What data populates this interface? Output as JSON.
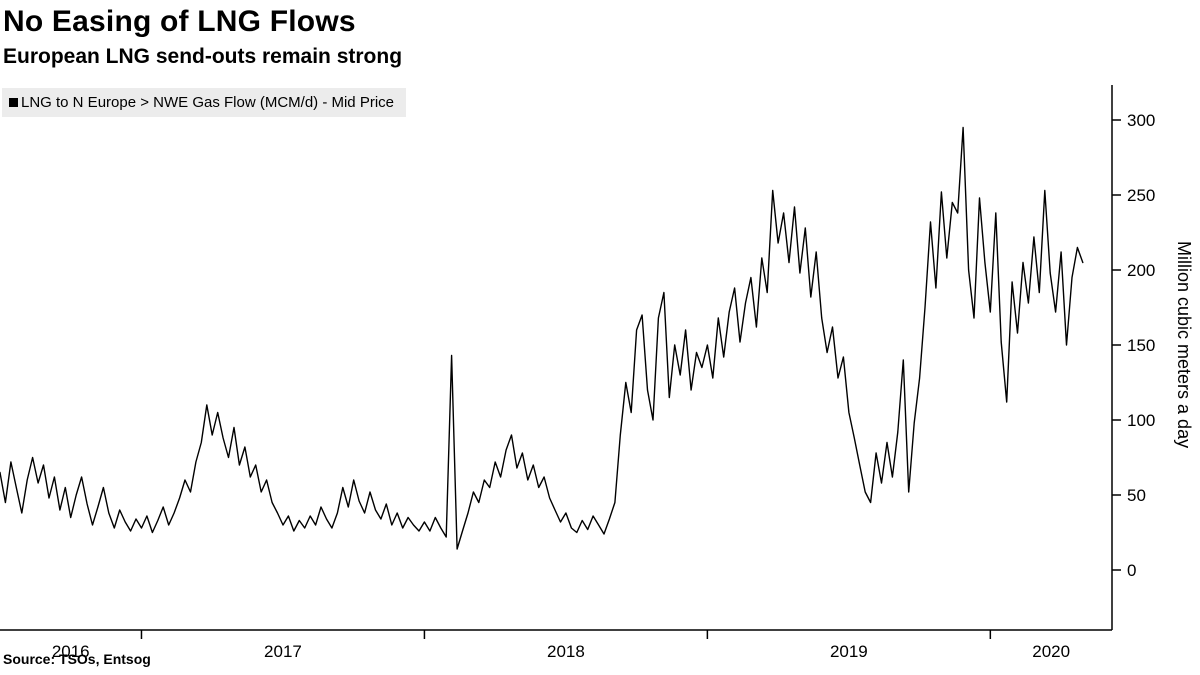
{
  "chart_data": {
    "type": "line",
    "title": "No Easing of LNG Flows",
    "subtitle": "European LNG send-outs remain strong",
    "legend_label": "LNG to N Europe > NWE Gas Flow (MCM/d) - Mid Price",
    "ylabel": "Million cubic meters a day",
    "source": "Source: TSOs, Entsog",
    "line_color": "#000000",
    "legend_bg": "#ececec",
    "x_domain": [
      2016.5,
      2020.43
    ],
    "ylim": [
      0,
      300
    ],
    "y_ticks": [
      0,
      50,
      100,
      150,
      200,
      250,
      300
    ],
    "x_ticks": [
      2017,
      2018,
      2019,
      2020
    ],
    "x_tick_labels": [
      {
        "label": "2016",
        "x": 2016.75
      },
      {
        "label": "2017",
        "x": 2017.5
      },
      {
        "label": "2018",
        "x": 2018.5
      },
      {
        "label": "2019",
        "x": 2019.5
      },
      {
        "label": "2020",
        "x": 2020.215
      }
    ],
    "series": [
      {
        "name": "LNG to N Europe > NWE Gas Flow (MCM/d) - Mid Price",
        "units": "MCM/d",
        "x_start": 2016.5,
        "x_step": 0.019231,
        "values": [
          65,
          45,
          72,
          55,
          38,
          60,
          75,
          58,
          70,
          48,
          62,
          40,
          55,
          35,
          50,
          62,
          44,
          30,
          42,
          55,
          38,
          28,
          40,
          32,
          26,
          34,
          28,
          36,
          25,
          33,
          42,
          30,
          38,
          48,
          60,
          52,
          72,
          85,
          110,
          90,
          105,
          88,
          75,
          95,
          70,
          82,
          62,
          70,
          52,
          60,
          45,
          38,
          30,
          36,
          26,
          33,
          28,
          36,
          30,
          42,
          34,
          28,
          38,
          55,
          42,
          60,
          46,
          38,
          52,
          40,
          34,
          44,
          30,
          38,
          28,
          35,
          30,
          26,
          32,
          26,
          35,
          28,
          22,
          143,
          14,
          26,
          38,
          52,
          45,
          60,
          55,
          72,
          62,
          80,
          90,
          68,
          78,
          60,
          70,
          55,
          62,
          48,
          40,
          32,
          38,
          28,
          25,
          33,
          27,
          36,
          30,
          24,
          34,
          45,
          90,
          125,
          105,
          160,
          170,
          120,
          100,
          168,
          185,
          115,
          150,
          130,
          160,
          120,
          145,
          135,
          150,
          128,
          168,
          142,
          172,
          188,
          152,
          178,
          195,
          162,
          208,
          185,
          253,
          218,
          238,
          205,
          242,
          198,
          228,
          182,
          212,
          168,
          145,
          162,
          128,
          142,
          105,
          88,
          70,
          52,
          45,
          78,
          58,
          85,
          62,
          92,
          140,
          52,
          98,
          128,
          175,
          232,
          188,
          252,
          208,
          245,
          238,
          295,
          200,
          168,
          248,
          205,
          172,
          238,
          152,
          112,
          192,
          158,
          205,
          178,
          222,
          185,
          253,
          198,
          172,
          212,
          150,
          195,
          215,
          205
        ]
      }
    ]
  }
}
